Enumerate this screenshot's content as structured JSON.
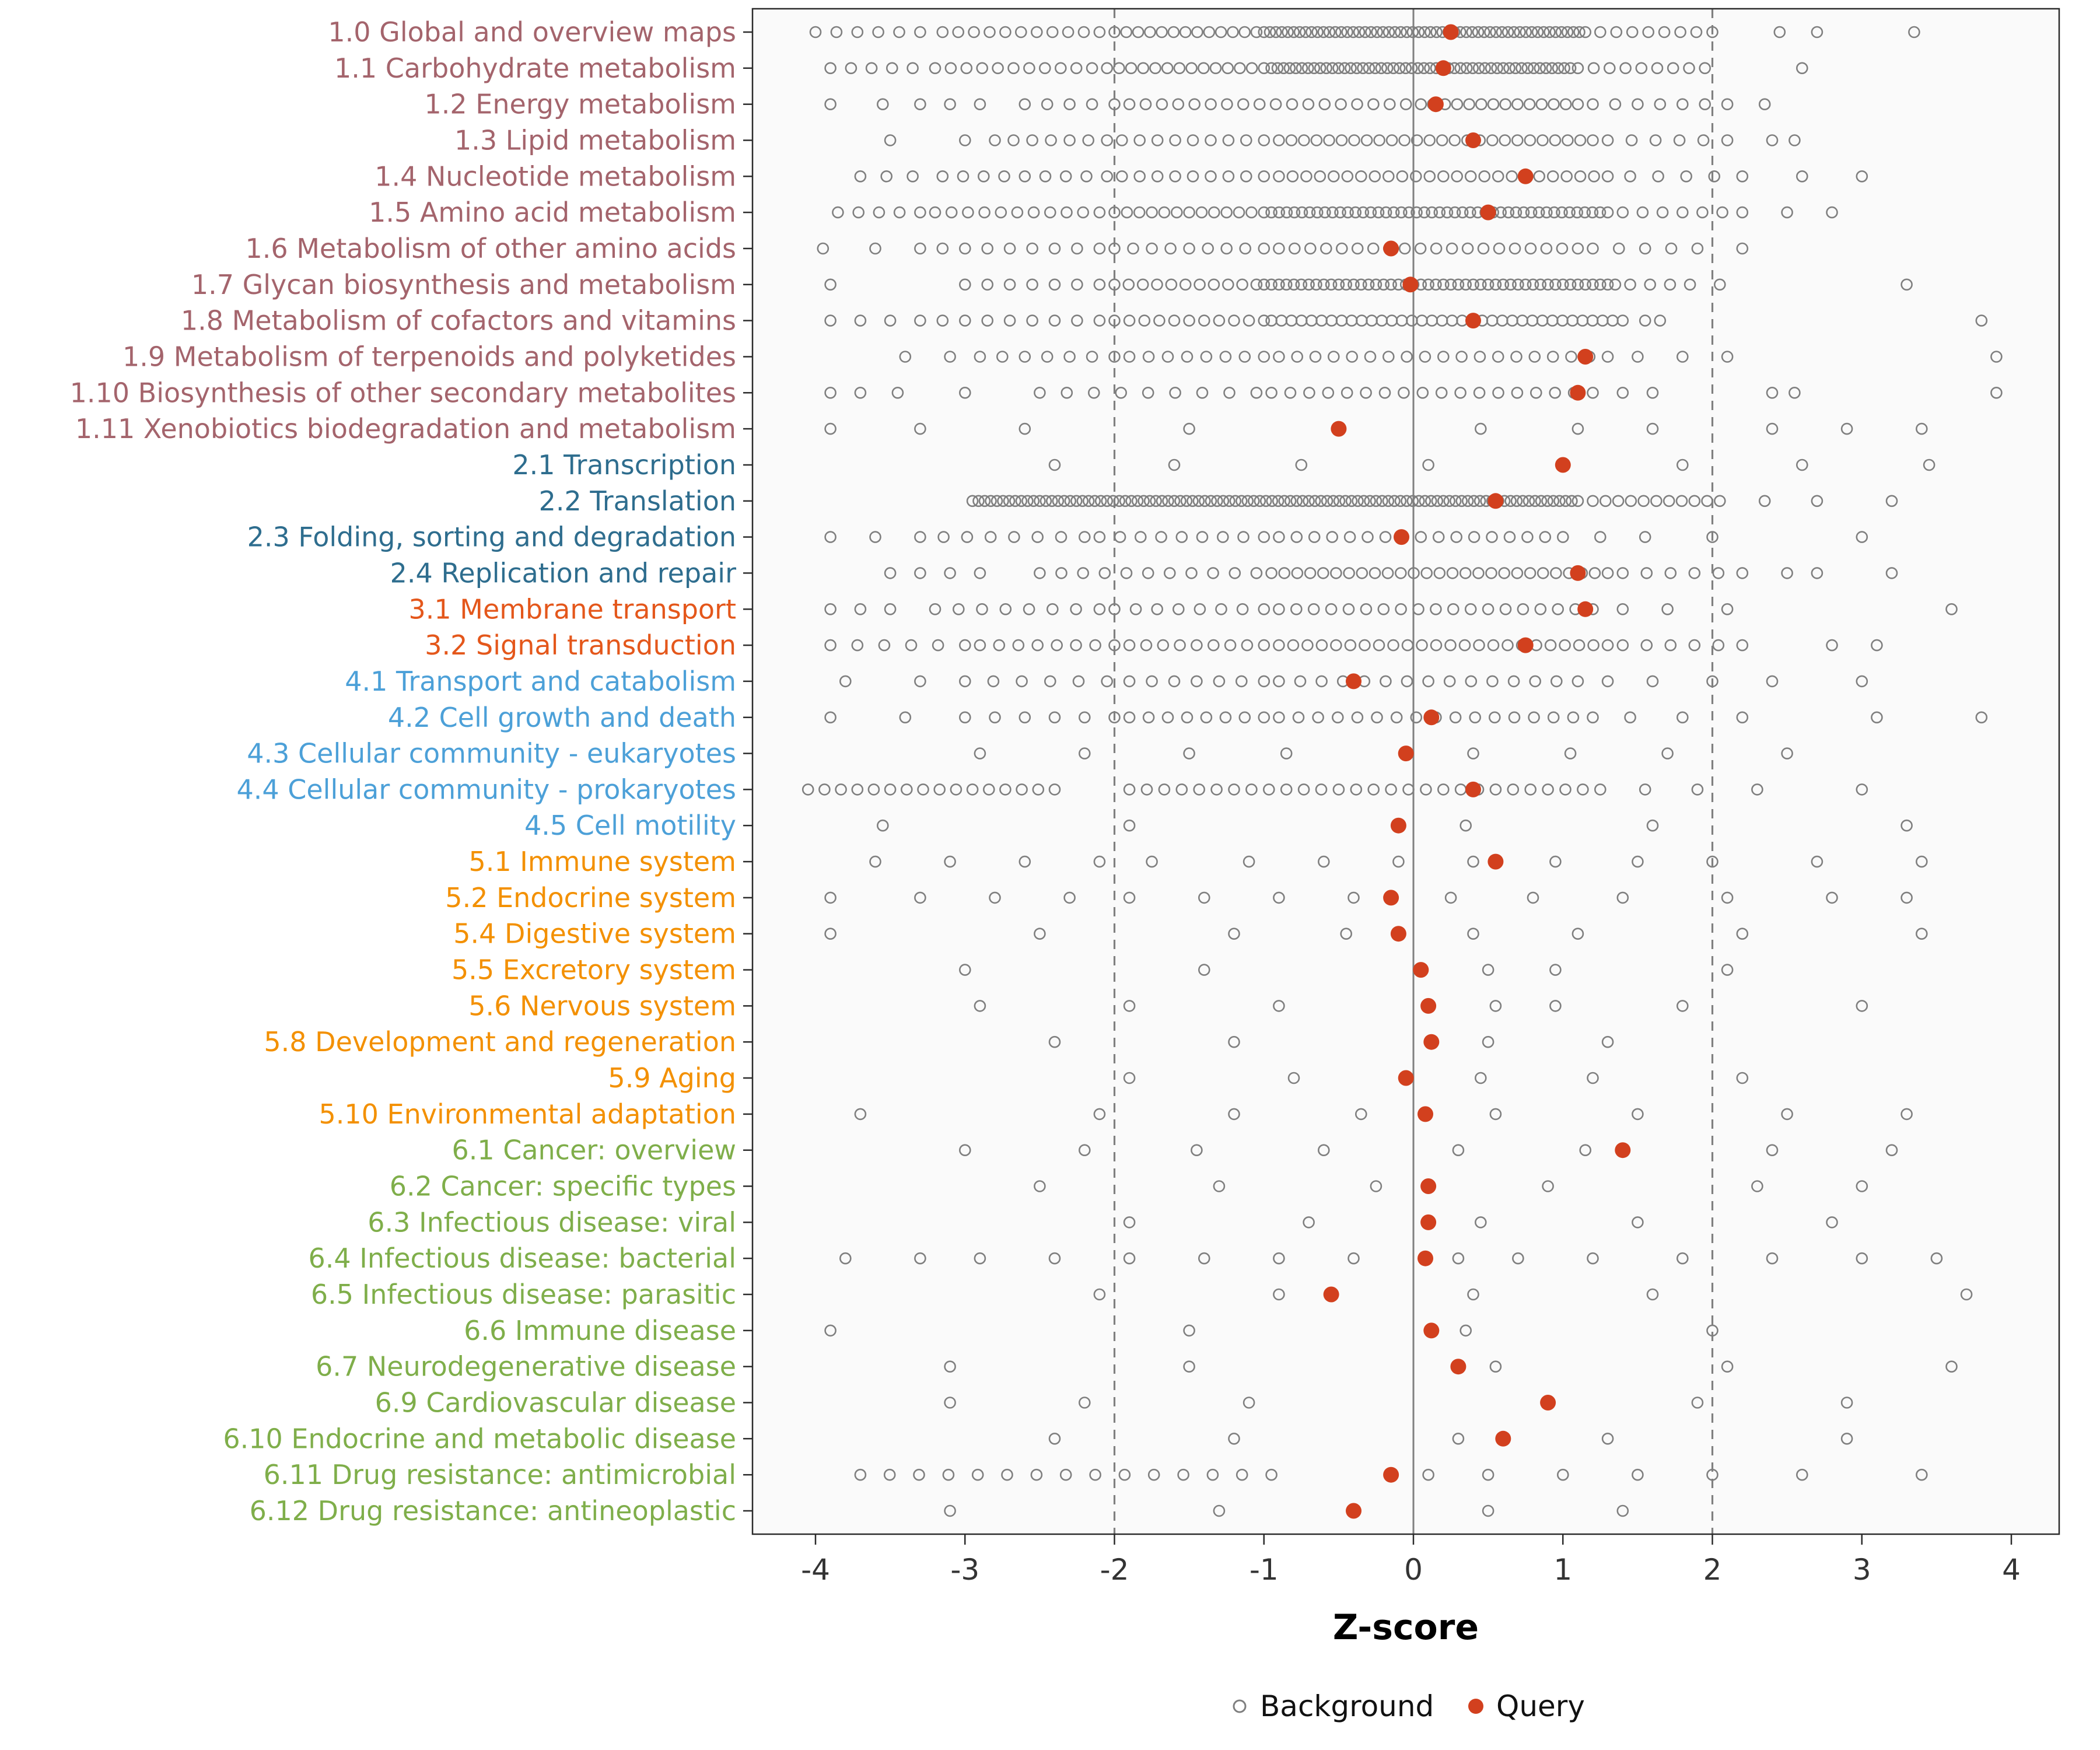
{
  "chart_data": {
    "type": "scatter",
    "subtype": "horizontal strip / dot plot of pathway Z-scores",
    "title": "",
    "xlabel": "Z-score",
    "ylabel": "",
    "xlim": [
      -4.4,
      4.4
    ],
    "axis": {
      "ticks": [
        -4,
        -3,
        -2,
        -1,
        0,
        1,
        2,
        3,
        4
      ],
      "zero_line": 0,
      "ref_dashed": [
        -2,
        2
      ]
    },
    "legend": {
      "background_label": "Background",
      "query_label": "Query"
    },
    "colors": {
      "background_point": "#7F7F7F",
      "query_point": "#D2401E",
      "panel_bg": "#FAFAFA",
      "panel_border": "#2B2B2B",
      "axis_line": "#2B2B2B",
      "axis_text": "#333333",
      "ref_line": "#808080",
      "legend_text": "#111111"
    },
    "groups": {
      "metabolism": {
        "color": "#A4646C"
      },
      "genetic": {
        "color": "#2E6D8E"
      },
      "environmental": {
        "color": "#E4571B"
      },
      "cellular": {
        "color": "#4CA0D8"
      },
      "organismal": {
        "color": "#F39000"
      },
      "disease": {
        "color": "#7FAE4A"
      }
    },
    "background_encoding": "entries are z-scores; a plain number is one point, [start, end, count] is count evenly spaced points",
    "rows": [
      {
        "label": "1.0 Global and overview maps",
        "group": "metabolism",
        "query": 0.25,
        "background": [
          [
            -4.0,
            -3.3,
            6
          ],
          [
            -3.15,
            -2.1,
            11
          ],
          [
            -2.0,
            -1.05,
            13
          ],
          [
            -1.0,
            1.15,
            55
          ],
          [
            1.25,
            2.0,
            8
          ],
          2.45,
          2.7,
          3.35
        ]
      },
      {
        "label": "1.1 Carbohydrate metabolism",
        "group": "metabolism",
        "query": 0.2,
        "background": [
          [
            -3.9,
            -3.35,
            5
          ],
          [
            -3.2,
            -2.15,
            11
          ],
          [
            -2.05,
            -1.0,
            14
          ],
          [
            -0.95,
            1.05,
            50
          ],
          [
            1.1,
            1.95,
            9
          ],
          2.6
        ]
      },
      {
        "label": "1.2 Energy metabolism",
        "group": "metabolism",
        "query": 0.15,
        "background": [
          -3.9,
          -3.55,
          [
            -3.3,
            -2.9,
            3
          ],
          [
            -2.6,
            -2.0,
            5
          ],
          [
            -1.9,
            -0.05,
            18
          ],
          [
            0.05,
            1.1,
            14
          ],
          [
            1.2,
            2.1,
            7
          ],
          2.35
        ]
      },
      {
        "label": "1.3 Lipid metabolism",
        "group": "metabolism",
        "query": 0.4,
        "background": [
          -3.5,
          -3.0,
          [
            -2.8,
            -2.05,
            7
          ],
          [
            -1.95,
            -1.0,
            9
          ],
          [
            -0.9,
            1.2,
            26
          ],
          [
            1.3,
            2.1,
            6
          ],
          2.4,
          2.55
        ]
      },
      {
        "label": "1.4 Nucleotide metabolism",
        "group": "metabolism",
        "query": 0.75,
        "background": [
          [
            -3.7,
            -3.35,
            3
          ],
          [
            -3.15,
            -2.05,
            9
          ],
          [
            -1.95,
            -1.0,
            9
          ],
          [
            -0.9,
            1.3,
            25
          ],
          [
            1.45,
            2.2,
            5
          ],
          2.6,
          3.0
        ]
      },
      {
        "label": "1.5 Amino acid metabolism",
        "group": "metabolism",
        "query": 0.5,
        "background": [
          [
            -3.85,
            -3.3,
            5
          ],
          [
            -3.2,
            -2.1,
            11
          ],
          [
            -2.0,
            -1.0,
            13
          ],
          [
            -0.95,
            1.3,
            45
          ],
          [
            1.4,
            2.2,
            7
          ],
          2.5,
          2.8
        ]
      },
      {
        "label": "1.6 Metabolism of other amino acids",
        "group": "metabolism",
        "query": -0.15,
        "background": [
          -3.95,
          -3.6,
          [
            -3.3,
            -2.1,
            9
          ],
          [
            -2.0,
            -1.0,
            9
          ],
          [
            -0.9,
            1.1,
            20
          ],
          [
            1.2,
            1.9,
            5
          ],
          2.2
        ]
      },
      {
        "label": "1.7 Glycan biosynthesis and metabolism",
        "group": "metabolism",
        "query": -0.02,
        "background": [
          -3.9,
          [
            -3.0,
            -2.1,
            7
          ],
          [
            -2.0,
            -1.05,
            11
          ],
          [
            -1.0,
            1.35,
            48
          ],
          [
            1.45,
            1.85,
            4
          ],
          2.05,
          3.3
        ]
      },
      {
        "label": "1.8 Metabolism of cofactors and vitamins",
        "group": "metabolism",
        "query": 0.4,
        "background": [
          [
            -3.9,
            -3.5,
            3
          ],
          [
            -3.3,
            -2.1,
            9
          ],
          [
            -2.0,
            -1.0,
            11
          ],
          [
            -0.95,
            1.4,
            36
          ],
          1.55,
          1.65,
          3.8
        ]
      },
      {
        "label": "1.9 Metabolism of terpenoids and polyketides",
        "group": "metabolism",
        "query": 1.15,
        "background": [
          -3.4,
          -3.1,
          [
            -2.9,
            -2.0,
            7
          ],
          [
            -1.9,
            -1.0,
            8
          ],
          [
            -0.9,
            1.3,
            19
          ],
          1.5,
          1.8,
          2.1,
          3.9
        ]
      },
      {
        "label": "1.10 Biosynthesis of other secondary metabolites",
        "group": "metabolism",
        "query": 1.1,
        "background": [
          -3.9,
          -3.7,
          -3.45,
          -3.0,
          [
            -2.5,
            -1.05,
            9
          ],
          [
            -0.95,
            1.2,
            18
          ],
          1.4,
          1.6,
          2.4,
          2.55,
          3.9
        ]
      },
      {
        "label": "1.11 Xenobiotics biodegradation and metabolism",
        "group": "metabolism",
        "query": -0.5,
        "background": [
          -3.9,
          -3.3,
          -2.6,
          -1.5,
          0.45,
          1.1,
          1.6,
          2.4,
          2.9,
          3.4
        ]
      },
      {
        "label": "2.1 Transcription",
        "group": "genetic",
        "query": 1.0,
        "background": [
          -2.4,
          -1.6,
          -0.75,
          0.1,
          1.8,
          2.6,
          3.45
        ]
      },
      {
        "label": "2.2 Translation",
        "group": "genetic",
        "query": 0.55,
        "background": [
          [
            -2.95,
            1.1,
            100
          ],
          [
            1.2,
            2.05,
            11
          ],
          2.35,
          2.7,
          3.2
        ]
      },
      {
        "label": "2.3 Folding, sorting and degradation",
        "group": "genetic",
        "query": -0.08,
        "background": [
          -3.9,
          -3.6,
          [
            -3.3,
            -2.2,
            8
          ],
          [
            -2.1,
            -1.0,
            9
          ],
          [
            -0.9,
            1.0,
            17
          ],
          1.25,
          1.55,
          2.0,
          3.0
        ]
      },
      {
        "label": "2.4 Replication and repair",
        "group": "genetic",
        "query": 1.1,
        "background": [
          [
            -3.5,
            -2.9,
            4
          ],
          [
            -2.5,
            -1.05,
            11
          ],
          [
            -0.95,
            1.3,
            27
          ],
          [
            1.4,
            2.2,
            6
          ],
          2.5,
          2.7,
          3.2
        ]
      },
      {
        "label": "3.1 Membrane transport",
        "group": "environmental",
        "query": 1.15,
        "background": [
          [
            -3.9,
            -3.5,
            3
          ],
          [
            -3.2,
            -2.1,
            8
          ],
          [
            -2.0,
            -1.0,
            8
          ],
          [
            -0.9,
            1.2,
            19
          ],
          1.4,
          1.7,
          2.1,
          3.6
        ]
      },
      {
        "label": "3.2 Signal transduction",
        "group": "environmental",
        "query": 0.75,
        "background": [
          [
            -3.9,
            -3.0,
            6
          ],
          [
            -2.9,
            -2.0,
            8
          ],
          [
            -1.9,
            -1.0,
            9
          ],
          [
            -0.9,
            1.3,
            24
          ],
          [
            1.4,
            2.2,
            6
          ],
          2.8,
          3.1
        ]
      },
      {
        "label": "4.1 Transport and catabolism",
        "group": "cellular",
        "query": -0.4,
        "background": [
          -3.8,
          -3.3,
          [
            -3.0,
            -2.05,
            6
          ],
          [
            -1.9,
            -1.0,
            7
          ],
          [
            -0.9,
            1.1,
            15
          ],
          1.3,
          1.6,
          2.0,
          2.4,
          3.0
        ]
      },
      {
        "label": "4.2 Cell growth and death",
        "group": "cellular",
        "query": 0.12,
        "background": [
          -3.9,
          -3.4,
          [
            -3.0,
            -2.0,
            6
          ],
          [
            -1.9,
            -1.0,
            8
          ],
          [
            -0.9,
            1.2,
            17
          ],
          1.45,
          1.8,
          2.2,
          3.1,
          3.8
        ]
      },
      {
        "label": "4.3 Cellular community - eukaryotes",
        "group": "cellular",
        "query": -0.05,
        "background": [
          -2.9,
          -2.2,
          -1.5,
          -0.85,
          0.4,
          1.05,
          1.7,
          2.5
        ]
      },
      {
        "label": "4.4 Cellular community - prokaryotes",
        "group": "cellular",
        "query": 0.4,
        "background": [
          [
            -4.05,
            -2.4,
            16
          ],
          [
            -1.9,
            1.25,
            28
          ],
          1.55,
          1.9,
          2.3,
          3.0
        ]
      },
      {
        "label": "4.5 Cell motility",
        "group": "cellular",
        "query": -0.1,
        "background": [
          -3.55,
          -1.9,
          0.35,
          1.6,
          3.3
        ]
      },
      {
        "label": "5.1 Immune system",
        "group": "organismal",
        "query": 0.55,
        "background": [
          -3.6,
          -3.1,
          -2.6,
          -2.1,
          -1.75,
          -1.1,
          -0.6,
          -0.1,
          0.4,
          0.95,
          1.5,
          2.0,
          2.7,
          3.4
        ]
      },
      {
        "label": "5.2 Endocrine system",
        "group": "organismal",
        "query": -0.15,
        "background": [
          -3.9,
          -3.3,
          -2.8,
          -2.3,
          -1.9,
          -1.4,
          -0.9,
          -0.4,
          0.25,
          0.8,
          1.4,
          2.1,
          2.8,
          3.3
        ]
      },
      {
        "label": "5.4 Digestive system",
        "group": "organismal",
        "query": -0.1,
        "background": [
          -3.9,
          -2.5,
          -1.2,
          -0.45,
          0.4,
          1.1,
          2.2,
          3.4
        ]
      },
      {
        "label": "5.5 Excretory system",
        "group": "organismal",
        "query": 0.05,
        "background": [
          -3.0,
          -1.4,
          0.5,
          0.95,
          2.1
        ]
      },
      {
        "label": "5.6 Nervous system",
        "group": "organismal",
        "query": 0.1,
        "background": [
          -2.9,
          -1.9,
          -0.9,
          0.55,
          0.95,
          1.8,
          3.0
        ]
      },
      {
        "label": "5.8 Development and regeneration",
        "group": "organismal",
        "query": 0.12,
        "background": [
          -2.4,
          -1.2,
          0.5,
          1.3
        ]
      },
      {
        "label": "5.9 Aging",
        "group": "organismal",
        "query": -0.05,
        "background": [
          -1.9,
          -0.8,
          0.45,
          1.2,
          2.2
        ]
      },
      {
        "label": "5.10 Environmental adaptation",
        "group": "organismal",
        "query": 0.08,
        "background": [
          -3.7,
          -2.1,
          -1.2,
          -0.35,
          0.55,
          1.5,
          2.5,
          3.3
        ]
      },
      {
        "label": "6.1 Cancer: overview",
        "group": "disease",
        "query": 1.4,
        "background": [
          -3.0,
          -2.2,
          -1.45,
          -0.6,
          0.3,
          1.15,
          2.4,
          3.2
        ]
      },
      {
        "label": "6.2 Cancer: specific types",
        "group": "disease",
        "query": 0.1,
        "background": [
          -2.5,
          -1.3,
          -0.25,
          0.9,
          2.3,
          3.0
        ]
      },
      {
        "label": "6.3 Infectious disease: viral",
        "group": "disease",
        "query": 0.1,
        "background": [
          -1.9,
          -0.7,
          0.45,
          1.5,
          2.8
        ]
      },
      {
        "label": "6.4 Infectious disease: bacterial",
        "group": "disease",
        "query": 0.08,
        "background": [
          -3.8,
          -3.3,
          -2.9,
          -2.4,
          -1.9,
          -1.4,
          -0.9,
          -0.4,
          0.3,
          0.7,
          1.2,
          1.8,
          2.4,
          3.0,
          3.5
        ]
      },
      {
        "label": "6.5 Infectious disease: parasitic",
        "group": "disease",
        "query": -0.55,
        "background": [
          -2.1,
          -0.9,
          0.4,
          1.6,
          3.7
        ]
      },
      {
        "label": "6.6 Immune disease",
        "group": "disease",
        "query": 0.12,
        "background": [
          -3.9,
          -1.5,
          0.35,
          2.0
        ]
      },
      {
        "label": "6.7 Neurodegenerative disease",
        "group": "disease",
        "query": 0.3,
        "background": [
          -3.1,
          -1.5,
          0.55,
          2.1,
          3.6
        ]
      },
      {
        "label": "6.9 Cardiovascular disease",
        "group": "disease",
        "query": 0.9,
        "background": [
          -3.1,
          -2.2,
          -1.1,
          1.9,
          2.9
        ]
      },
      {
        "label": "6.10 Endocrine and metabolic disease",
        "group": "disease",
        "query": 0.6,
        "background": [
          -2.4,
          -1.2,
          0.3,
          1.3,
          2.9
        ]
      },
      {
        "label": "6.11 Drug resistance: antimicrobial",
        "group": "disease",
        "query": -0.15,
        "background": [
          [
            -3.7,
            -0.95,
            15
          ],
          0.1,
          0.5,
          1.0,
          1.5,
          2.0,
          2.6,
          3.4
        ]
      },
      {
        "label": "6.12 Drug resistance: antineoplastic",
        "group": "disease",
        "query": -0.4,
        "background": [
          -3.1,
          -1.3,
          0.5,
          1.4
        ]
      }
    ]
  }
}
